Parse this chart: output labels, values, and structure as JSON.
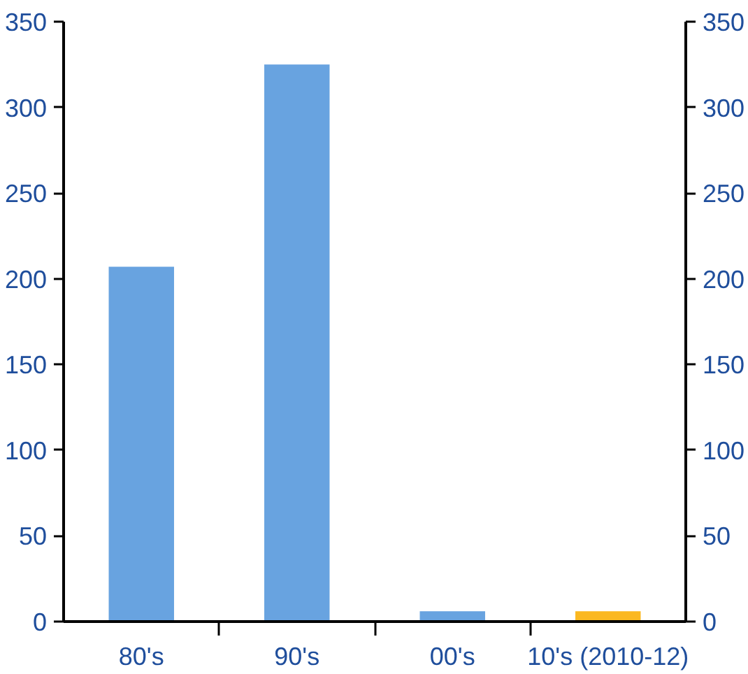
{
  "chart_data": {
    "type": "bar",
    "categories": [
      "80's",
      "90's",
      "00's",
      "10's (2010-12)"
    ],
    "values": [
      207,
      325,
      6,
      6
    ],
    "colors": [
      "#68a3e0",
      "#68a3e0",
      "#68a3e0",
      "#fbb820"
    ],
    "ylim": [
      0,
      350
    ],
    "yticks": [
      0,
      50,
      100,
      150,
      200,
      250,
      300,
      350
    ],
    "y2lim": [
      0,
      350
    ],
    "y2ticks": [
      0,
      50,
      100,
      150,
      200,
      250,
      300,
      350
    ],
    "grid": false
  }
}
